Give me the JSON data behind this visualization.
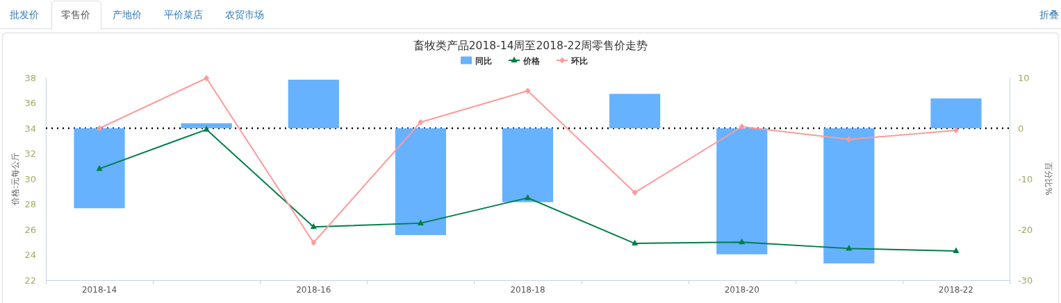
{
  "chart_data": {
    "type": "bar",
    "title": "畜牧类产品2018-14周至2018-22周零售价走势",
    "annotations": [
      "批发价",
      "零售价",
      "产地价",
      "平价菜店",
      "农贸市场",
      "折叠"
    ],
    "categories": [
      "2018-14",
      null,
      "2018-16",
      null,
      "2018-18",
      null,
      "2018-20",
      null,
      "2018-22"
    ],
    "series": [
      {
        "name": "同比",
        "axis": "y2",
        "color": "#66b2ff",
        "values": [
          -15.8,
          1.0,
          9.6,
          -21.1,
          -14.6,
          6.8,
          -24.9,
          -26.7,
          5.9
        ]
      },
      {
        "name": "价格",
        "type": "line",
        "color": "#007d46",
        "marker": "triangle",
        "values": [
          30.8,
          33.9,
          26.2,
          26.5,
          28.5,
          24.9,
          25.0,
          24.5,
          24.3
        ]
      },
      {
        "name": "环比",
        "type": "line",
        "axis": "y2",
        "color": "#ff9999",
        "marker": "diamond",
        "values": [
          0.0,
          9.9,
          -22.6,
          1.2,
          7.4,
          -12.7,
          0.3,
          -2.2,
          -0.4
        ]
      }
    ],
    "ylabel": "价格:元每公斤",
    "y2label": "百分比%",
    "ylim": [
      22,
      38
    ],
    "yticks": [
      22,
      24,
      26,
      28,
      30,
      32,
      34,
      36,
      38
    ],
    "y2lim": [
      -30,
      10
    ],
    "y2ticks": [
      -30,
      -20,
      -10,
      0,
      10
    ],
    "ref_lines": [
      {
        "axis": "y2",
        "value": 0,
        "color": "#000000",
        "line_style": "dotted"
      }
    ],
    "legend": "top",
    "grid": false
  }
}
